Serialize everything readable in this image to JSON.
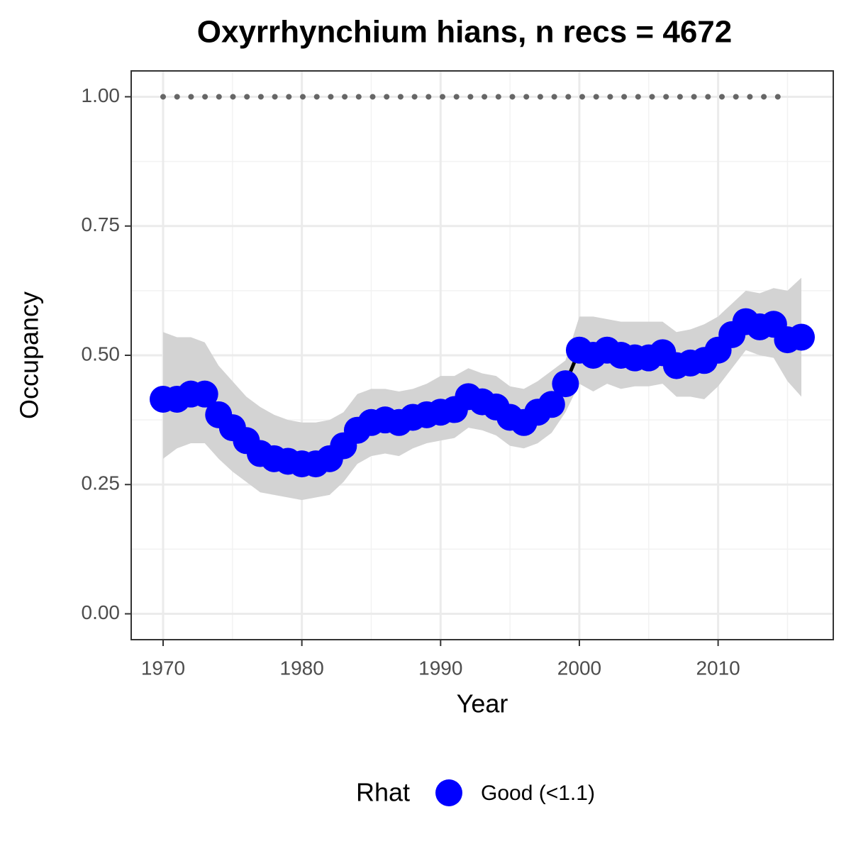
{
  "chart_data": {
    "type": "line",
    "title": "Oxyrrhynchium hians, n recs = 4672",
    "x_label": "Year",
    "y_label": "Occupancy",
    "x": [
      1970,
      1971,
      1972,
      1973,
      1974,
      1975,
      1976,
      1977,
      1978,
      1979,
      1980,
      1981,
      1982,
      1983,
      1984,
      1985,
      1986,
      1987,
      1988,
      1989,
      1990,
      1991,
      1992,
      1993,
      1994,
      1995,
      1996,
      1997,
      1998,
      1999,
      2000,
      2001,
      2002,
      2003,
      2004,
      2005,
      2006,
      2007,
      2008,
      2009,
      2010,
      2011,
      2012,
      2013,
      2014,
      2015,
      2016
    ],
    "series": [
      {
        "name": "Good (<1.1)",
        "color": "#0000ff",
        "line_color": "#000000",
        "values": [
          0.415,
          0.415,
          0.425,
          0.425,
          0.385,
          0.36,
          0.335,
          0.31,
          0.3,
          0.295,
          0.29,
          0.29,
          0.3,
          0.325,
          0.355,
          0.37,
          0.375,
          0.37,
          0.38,
          0.385,
          0.39,
          0.395,
          0.42,
          0.41,
          0.4,
          0.38,
          0.37,
          0.39,
          0.405,
          0.445,
          0.51,
          0.5,
          0.51,
          0.5,
          0.495,
          0.495,
          0.505,
          0.48,
          0.485,
          0.49,
          0.51,
          0.54,
          0.565,
          0.555,
          0.56,
          0.53,
          0.535
        ],
        "upper": [
          0.545,
          0.535,
          0.535,
          0.525,
          0.48,
          0.45,
          0.42,
          0.4,
          0.385,
          0.375,
          0.37,
          0.37,
          0.375,
          0.39,
          0.425,
          0.435,
          0.435,
          0.43,
          0.435,
          0.445,
          0.46,
          0.46,
          0.475,
          0.465,
          0.46,
          0.44,
          0.435,
          0.45,
          0.47,
          0.49,
          0.575,
          0.575,
          0.57,
          0.565,
          0.565,
          0.565,
          0.565,
          0.545,
          0.55,
          0.56,
          0.575,
          0.6,
          0.625,
          0.62,
          0.63,
          0.625,
          0.65
        ],
        "lower": [
          0.3,
          0.32,
          0.33,
          0.33,
          0.3,
          0.275,
          0.255,
          0.235,
          0.23,
          0.225,
          0.22,
          0.225,
          0.23,
          0.255,
          0.29,
          0.305,
          0.31,
          0.305,
          0.32,
          0.33,
          0.335,
          0.34,
          0.36,
          0.355,
          0.345,
          0.325,
          0.32,
          0.33,
          0.35,
          0.39,
          0.445,
          0.43,
          0.445,
          0.435,
          0.44,
          0.44,
          0.445,
          0.42,
          0.42,
          0.415,
          0.44,
          0.475,
          0.51,
          0.5,
          0.495,
          0.45,
          0.42
        ]
      }
    ],
    "ribbon_color": "#d3d3d3",
    "hline": {
      "value": 1,
      "from": 1970,
      "to": 2015,
      "color": "#666666"
    },
    "legend_title": "Rhat",
    "legend_position": "bottom",
    "xlim": [
      1967.7,
      2018.3
    ],
    "xticks": [
      1970,
      1980,
      1990,
      2000,
      2010
    ],
    "x_minor_ticks": [
      1975,
      1985,
      1995,
      2005,
      2015
    ],
    "ylim": [
      -0.05,
      1.05
    ],
    "yticks": [
      {
        "value": 0,
        "label": "0.00"
      },
      {
        "value": 0.25,
        "label": "0.25"
      },
      {
        "value": 0.5,
        "label": "0.50"
      },
      {
        "value": 0.75,
        "label": "0.75"
      },
      {
        "value": 1,
        "label": "1.00"
      }
    ],
    "y_minor_ticks": [
      0.125,
      0.375,
      0.625,
      0.875
    ],
    "grid": true
  }
}
